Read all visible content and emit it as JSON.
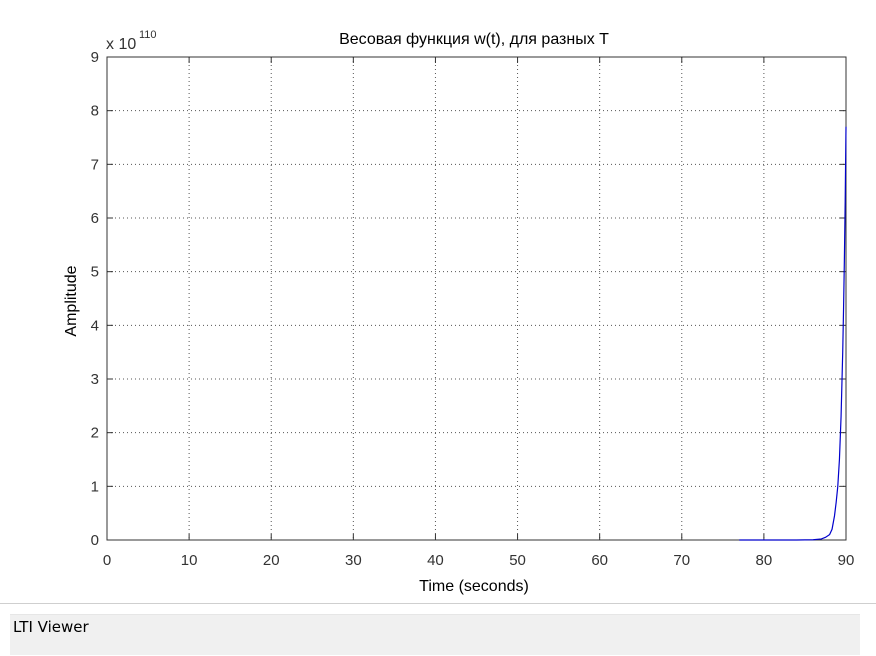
{
  "chart_data": {
    "type": "line",
    "title": "Весовая функция w(t), для разных T",
    "xlabel": "Time (seconds)",
    "ylabel": "Amplitude",
    "y_multiplier": {
      "base": "x 10",
      "exponent": "110"
    },
    "xlim": [
      0,
      90
    ],
    "ylim": [
      0,
      9
    ],
    "x_ticks": [
      0,
      10,
      20,
      30,
      40,
      50,
      60,
      70,
      80,
      90
    ],
    "y_ticks": [
      0,
      1,
      2,
      3,
      4,
      5,
      6,
      7,
      8,
      9
    ],
    "grid": true,
    "series": [
      {
        "color": "#0000cc",
        "x": [
          77.0,
          80.0,
          84.0,
          86.0,
          87.0,
          87.5,
          88.0,
          88.3,
          88.6,
          88.8,
          89.0,
          89.2,
          89.4,
          89.6,
          89.7,
          89.8,
          89.9,
          90.0
        ],
        "y": [
          0,
          0,
          0,
          0.005,
          0.02,
          0.05,
          0.1,
          0.2,
          0.45,
          0.7,
          1.0,
          1.5,
          2.3,
          3.5,
          4.3,
          5.2,
          6.3,
          7.7
        ]
      }
    ]
  },
  "status_bar": {
    "label": "LTI Viewer"
  }
}
